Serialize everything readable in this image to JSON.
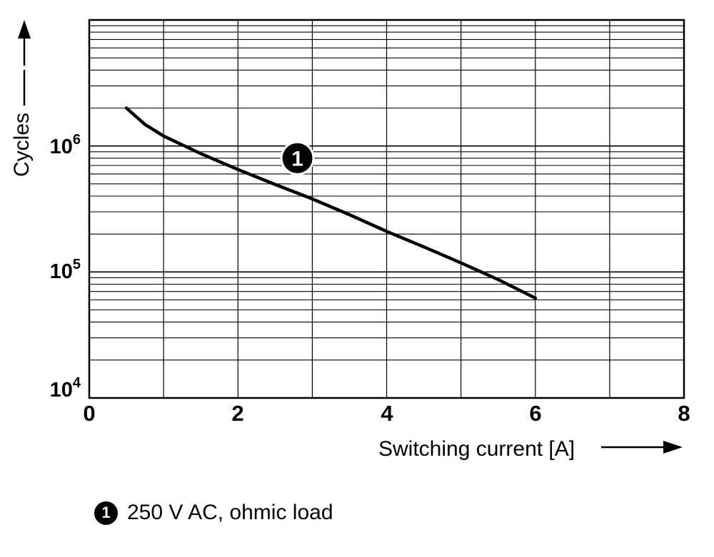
{
  "figure": {
    "background": "#ffffff",
    "legend": {
      "marker": "1",
      "label": "250 V AC, ohmic load"
    }
  },
  "chart_data": {
    "type": "line",
    "title": "",
    "xlabel": "Switching current [A]",
    "ylabel": "Cycles",
    "x_axis": {
      "min": 0,
      "max": 8,
      "ticks": [
        0,
        2,
        4,
        6,
        8
      ],
      "minor_step": 1,
      "scale": "linear"
    },
    "y_axis": {
      "min": 10000,
      "max": 10000000,
      "scale": "log",
      "tick_base": "10",
      "tick_exponents": [
        4,
        5,
        6
      ]
    },
    "grid": {
      "vertical_every_A": 1,
      "horizontal": "log-minor-and-major"
    },
    "legend_position": "bottom-left",
    "series": [
      {
        "name": "250 V AC, ohmic load",
        "marker_label": "1",
        "marker_at": {
          "x": 2.8,
          "y": 800000
        },
        "color": "#000000",
        "width": 4.5,
        "points": [
          [
            0.5,
            2000000
          ],
          [
            0.75,
            1480000
          ],
          [
            1,
            1200000
          ],
          [
            1.5,
            870000
          ],
          [
            2,
            650000
          ],
          [
            2.5,
            495000
          ],
          [
            3,
            380000
          ],
          [
            3.5,
            285000
          ],
          [
            4,
            210000
          ],
          [
            4.5,
            158000
          ],
          [
            5,
            118000
          ],
          [
            5.5,
            87000
          ],
          [
            6,
            62000
          ]
        ]
      }
    ]
  }
}
